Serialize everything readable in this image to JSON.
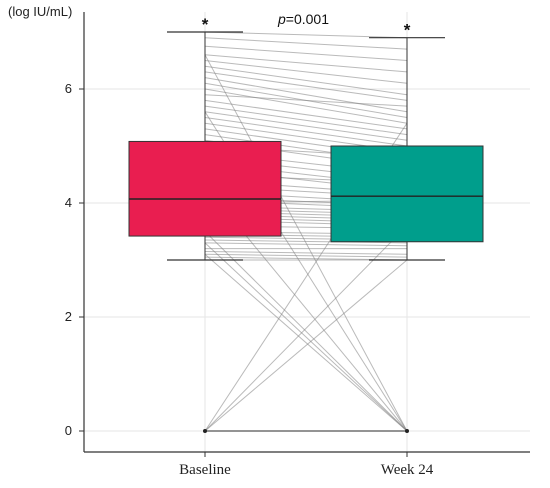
{
  "chart_data": {
    "type": "box",
    "ylabel": "(log IU/mL)",
    "ylim": [
      -0.1,
      7.5
    ],
    "yticks": [
      0,
      2,
      4,
      6
    ],
    "categories": [
      "Baseline",
      "Week 24"
    ],
    "annotation": {
      "prefix": "p",
      "text": "=0.001"
    },
    "significance_marker": "*",
    "boxes": [
      {
        "name": "Baseline",
        "color": "#E91E50",
        "q1": 3.42,
        "median": 4.07,
        "q3": 5.08,
        "whisker_low": 3.0,
        "whisker_high": 7.0,
        "outliers": [
          0
        ]
      },
      {
        "name": "Week 24",
        "color": "#009E8C",
        "q1": 3.32,
        "median": 4.12,
        "q3": 5.0,
        "whisker_low": 3.0,
        "whisker_high": 6.9,
        "outliers": [
          0
        ]
      }
    ],
    "paired": [
      [
        7.0,
        6.9
      ],
      [
        6.9,
        6.7
      ],
      [
        6.75,
        6.5
      ],
      [
        6.6,
        6.3
      ],
      [
        6.5,
        6.1
      ],
      [
        6.4,
        5.9
      ],
      [
        6.3,
        5.8
      ],
      [
        6.2,
        5.6
      ],
      [
        6.1,
        5.5
      ],
      [
        6.0,
        5.4
      ],
      [
        5.9,
        5.7
      ],
      [
        5.8,
        5.3
      ],
      [
        5.7,
        5.2
      ],
      [
        5.6,
        5.1
      ],
      [
        5.5,
        5.0
      ],
      [
        5.4,
        4.9
      ],
      [
        5.3,
        4.8
      ],
      [
        5.2,
        4.7
      ],
      [
        5.1,
        4.6
      ],
      [
        5.0,
        4.8
      ],
      [
        4.9,
        4.5
      ],
      [
        4.8,
        4.4
      ],
      [
        4.7,
        4.3
      ],
      [
        4.6,
        4.2
      ],
      [
        4.5,
        4.35
      ],
      [
        4.4,
        4.15
      ],
      [
        4.3,
        4.1
      ],
      [
        4.2,
        4.0
      ],
      [
        4.1,
        3.95
      ],
      [
        4.05,
        3.9
      ],
      [
        4.0,
        4.05
      ],
      [
        3.95,
        3.85
      ],
      [
        3.9,
        3.8
      ],
      [
        3.85,
        3.75
      ],
      [
        3.8,
        3.7
      ],
      [
        3.75,
        3.65
      ],
      [
        3.7,
        3.6
      ],
      [
        3.6,
        3.55
      ],
      [
        3.5,
        3.45
      ],
      [
        3.45,
        3.4
      ],
      [
        3.4,
        3.35
      ],
      [
        3.35,
        3.3
      ],
      [
        3.3,
        3.25
      ],
      [
        3.2,
        3.2
      ],
      [
        3.15,
        3.1
      ],
      [
        3.1,
        3.05
      ],
      [
        3.05,
        3.0
      ],
      [
        3.0,
        3.0
      ],
      [
        6.6,
        0
      ],
      [
        5.6,
        0
      ],
      [
        4.3,
        0
      ],
      [
        3.5,
        0
      ],
      [
        3.3,
        0
      ],
      [
        3.1,
        0
      ],
      [
        0,
        5.4
      ],
      [
        0,
        3.6
      ],
      [
        0,
        3.0
      ],
      [
        0,
        0
      ]
    ]
  }
}
